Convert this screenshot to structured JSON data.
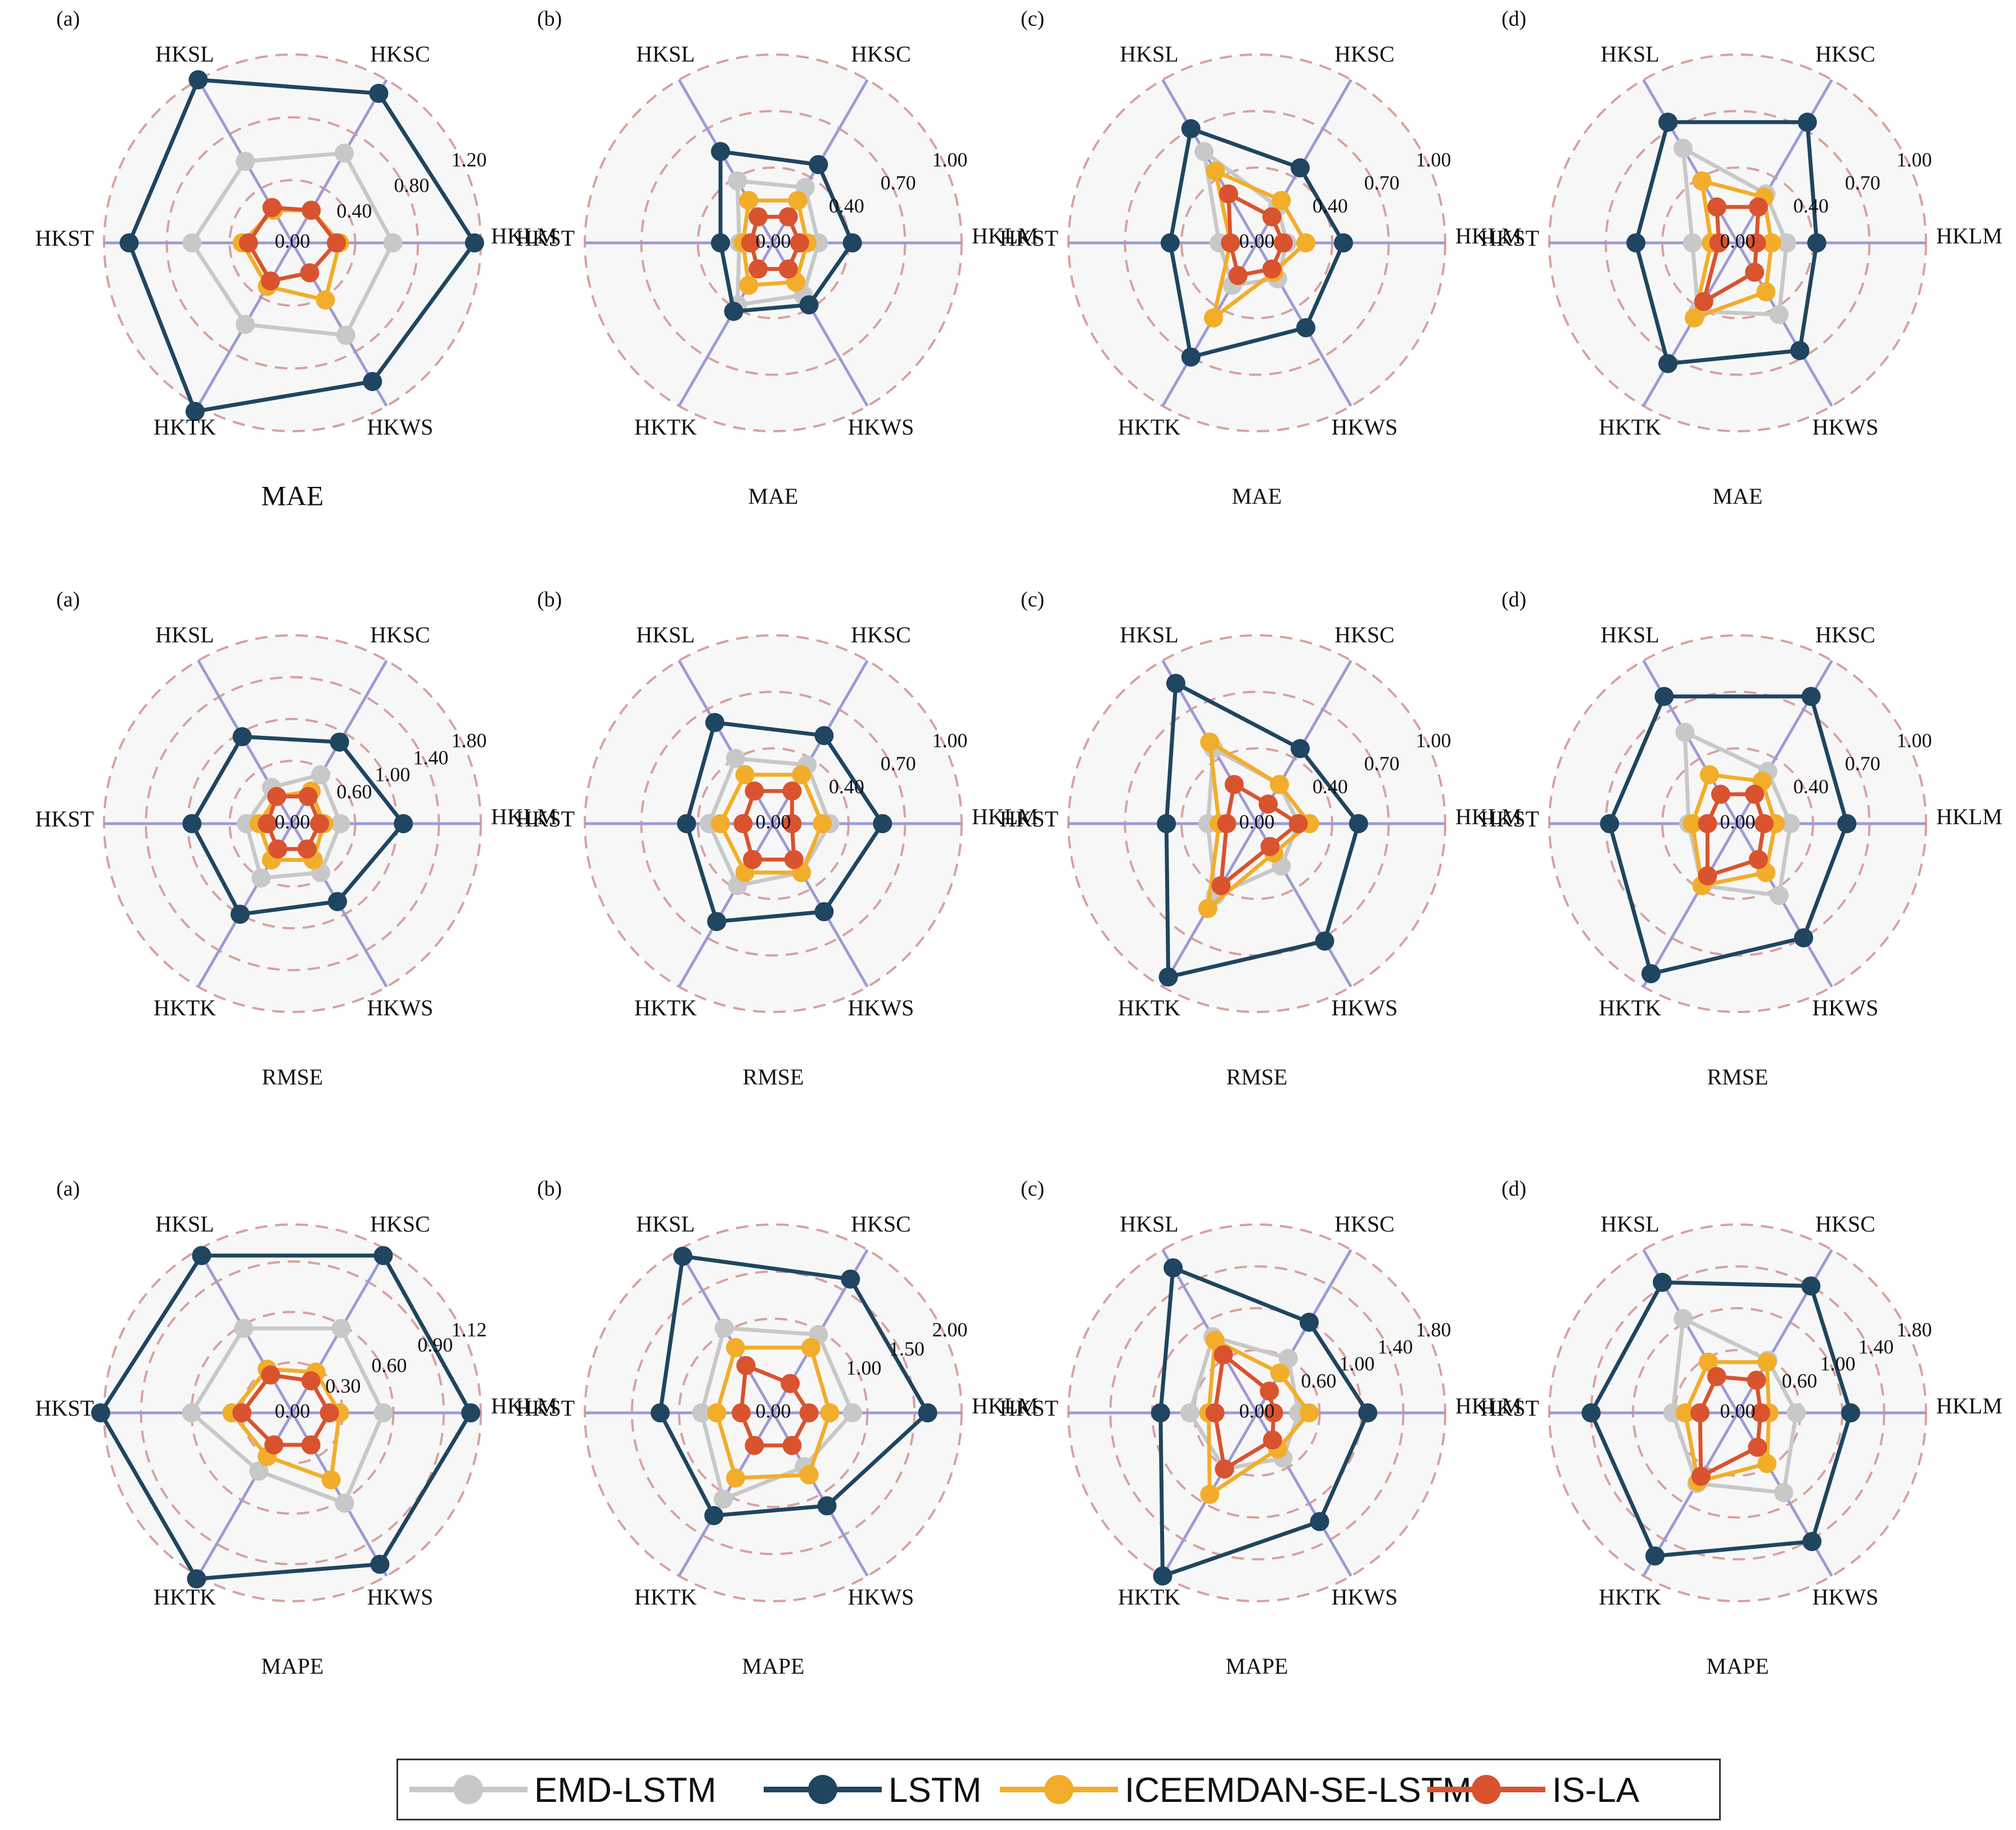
{
  "chart_data": {
    "type": "radar",
    "axes": [
      "HKLM",
      "HKSC",
      "HKSL",
      "HKST",
      "HKTK",
      "HKWS"
    ],
    "series_names": [
      "EMD-LSTM",
      "LSTM",
      "ICEEMDAN-SE-LSTM",
      "IS-LA"
    ],
    "series_colors": [
      "#c8c8c8",
      "#1f4560",
      "#f2ad2a",
      "#d9532f"
    ],
    "charts": [
      {
        "metric": "MAE",
        "panel": "(a)",
        "max": 1.2,
        "ticks": [
          "0.00",
          "0.40",
          "0.80",
          "1.20"
        ],
        "values": [
          [
            0.64,
            0.66,
            0.6,
            0.64,
            0.6,
            0.68
          ],
          [
            1.16,
            1.1,
            1.2,
            1.04,
            1.24,
            1.02
          ],
          [
            0.3,
            0.24,
            0.24,
            0.32,
            0.32,
            0.42
          ],
          [
            0.28,
            0.24,
            0.26,
            0.28,
            0.28,
            0.22
          ]
        ]
      },
      {
        "metric": "MAE",
        "panel": "(b)",
        "max": 1.0,
        "ticks": [
          "0.00",
          "0.40",
          "0.70",
          "1.00"
        ],
        "values": [
          [
            0.24,
            0.34,
            0.38,
            0.18,
            0.38,
            0.32
          ],
          [
            0.42,
            0.48,
            0.56,
            0.28,
            0.42,
            0.38
          ],
          [
            0.18,
            0.26,
            0.26,
            0.16,
            0.26,
            0.24
          ],
          [
            0.14,
            0.16,
            0.16,
            0.12,
            0.16,
            0.16
          ]
        ]
      },
      {
        "metric": "MAE",
        "panel": "(c)",
        "max": 1.0,
        "ticks": [
          "0.00",
          "0.40",
          "0.70",
          "1.00"
        ],
        "values": [
          [
            0.16,
            0.22,
            0.56,
            0.2,
            0.26,
            0.22
          ],
          [
            0.46,
            0.46,
            0.7,
            0.46,
            0.7,
            0.52
          ],
          [
            0.26,
            0.26,
            0.44,
            0.14,
            0.46,
            0.18
          ],
          [
            0.14,
            0.16,
            0.3,
            0.14,
            0.2,
            0.16
          ]
        ]
      },
      {
        "metric": "MAE",
        "panel": "(d)",
        "max": 1.0,
        "ticks": [
          "0.00",
          "0.40",
          "0.70",
          "1.00"
        ],
        "values": [
          [
            0.26,
            0.3,
            0.58,
            0.24,
            0.42,
            0.44
          ],
          [
            0.42,
            0.74,
            0.74,
            0.54,
            0.74,
            0.66
          ],
          [
            0.18,
            0.28,
            0.38,
            0.14,
            0.46,
            0.3
          ],
          [
            0.1,
            0.22,
            0.22,
            0.1,
            0.36,
            0.18
          ]
        ]
      },
      {
        "metric": "RMSE",
        "panel": "(a)",
        "max": 1.8,
        "ticks": [
          "0.00",
          "0.60",
          "1.00",
          "1.40",
          "1.80"
        ],
        "values": [
          [
            0.46,
            0.54,
            0.4,
            0.44,
            0.6,
            0.54
          ],
          [
            1.06,
            0.9,
            0.96,
            0.96,
            1.0,
            0.86
          ],
          [
            0.3,
            0.36,
            0.3,
            0.32,
            0.4,
            0.4
          ],
          [
            0.26,
            0.3,
            0.3,
            0.24,
            0.28,
            0.28
          ]
        ]
      },
      {
        "metric": "RMSE",
        "panel": "(b)",
        "max": 1.0,
        "ticks": [
          "0.00",
          "0.40",
          "0.70",
          "1.00"
        ],
        "values": [
          [
            0.3,
            0.36,
            0.4,
            0.34,
            0.38,
            0.3
          ],
          [
            0.58,
            0.54,
            0.62,
            0.46,
            0.6,
            0.54
          ],
          [
            0.26,
            0.3,
            0.3,
            0.28,
            0.3,
            0.3
          ],
          [
            0.1,
            0.2,
            0.2,
            0.16,
            0.22,
            0.22
          ]
        ]
      },
      {
        "metric": "RMSE",
        "panel": "(c)",
        "max": 1.0,
        "ticks": [
          "0.00",
          "0.40",
          "0.70",
          "1.00"
        ],
        "values": [
          [
            0.22,
            0.24,
            0.46,
            0.26,
            0.44,
            0.26
          ],
          [
            0.54,
            0.46,
            0.86,
            0.48,
            0.94,
            0.72
          ],
          [
            0.28,
            0.24,
            0.5,
            0.2,
            0.52,
            0.18
          ],
          [
            0.22,
            0.12,
            0.24,
            0.16,
            0.38,
            0.14
          ]
        ]
      },
      {
        "metric": "RMSE",
        "panel": "(d)",
        "max": 1.0,
        "ticks": [
          "0.00",
          "0.40",
          "0.70",
          "1.00"
        ],
        "values": [
          [
            0.28,
            0.32,
            0.56,
            0.26,
            0.38,
            0.44
          ],
          [
            0.58,
            0.78,
            0.78,
            0.68,
            0.92,
            0.7
          ],
          [
            0.2,
            0.26,
            0.3,
            0.24,
            0.38,
            0.3
          ],
          [
            0.14,
            0.18,
            0.18,
            0.16,
            0.32,
            0.22
          ]
        ]
      },
      {
        "metric": "MAPE",
        "panel": "(a)",
        "max": 1.12,
        "ticks": [
          "0.00",
          "0.30",
          "0.60",
          "0.90",
          "1.12"
        ],
        "values": [
          [
            0.54,
            0.58,
            0.58,
            0.6,
            0.4,
            0.62
          ],
          [
            1.06,
            1.08,
            1.08,
            1.14,
            1.14,
            1.04
          ],
          [
            0.28,
            0.28,
            0.3,
            0.36,
            0.3,
            0.46
          ],
          [
            0.22,
            0.22,
            0.26,
            0.3,
            0.22,
            0.22
          ]
        ]
      },
      {
        "metric": "MAPE",
        "panel": "(b)",
        "max": 2.0,
        "ticks": [
          "0.00",
          "1.00",
          "1.50",
          "2.00"
        ],
        "values": [
          [
            0.84,
            0.96,
            1.04,
            0.76,
            1.06,
            0.66
          ],
          [
            1.64,
            1.64,
            1.92,
            1.2,
            1.26,
            1.14
          ],
          [
            0.6,
            0.8,
            0.8,
            0.6,
            0.8,
            0.76
          ],
          [
            0.38,
            0.36,
            0.58,
            0.34,
            0.4,
            0.4
          ]
        ]
      },
      {
        "metric": "MAPE",
        "panel": "(c)",
        "max": 1.8,
        "ticks": [
          "0.00",
          "0.60",
          "1.00",
          "1.40",
          "1.80"
        ],
        "values": [
          [
            0.4,
            0.6,
            0.84,
            0.64,
            0.62,
            0.5
          ],
          [
            1.06,
            1.0,
            1.6,
            0.92,
            1.8,
            1.2
          ],
          [
            0.5,
            0.44,
            0.8,
            0.46,
            0.9,
            0.4
          ],
          [
            0.16,
            0.24,
            0.64,
            0.4,
            0.62,
            0.3
          ]
        ]
      },
      {
        "metric": "MAPE",
        "panel": "(d)",
        "max": 1.8,
        "ticks": [
          "0.00",
          "0.60",
          "1.00",
          "1.40",
          "1.80"
        ],
        "values": [
          [
            0.56,
            0.58,
            1.04,
            0.62,
            0.78,
            0.88
          ],
          [
            1.08,
            1.4,
            1.44,
            1.4,
            1.58,
            1.42
          ],
          [
            0.3,
            0.56,
            0.56,
            0.5,
            0.76,
            0.56
          ],
          [
            0.22,
            0.36,
            0.4,
            0.36,
            0.7,
            0.38
          ]
        ]
      }
    ]
  },
  "legend": {
    "items": [
      {
        "label": "EMD-LSTM",
        "color": "#c8c8c8"
      },
      {
        "label": "LSTM",
        "color": "#1f4560"
      },
      {
        "label": "ICEEMDAN-SE-LSTM",
        "color": "#f2ad2a"
      },
      {
        "label": "IS-LA",
        "color": "#d9532f"
      }
    ]
  }
}
